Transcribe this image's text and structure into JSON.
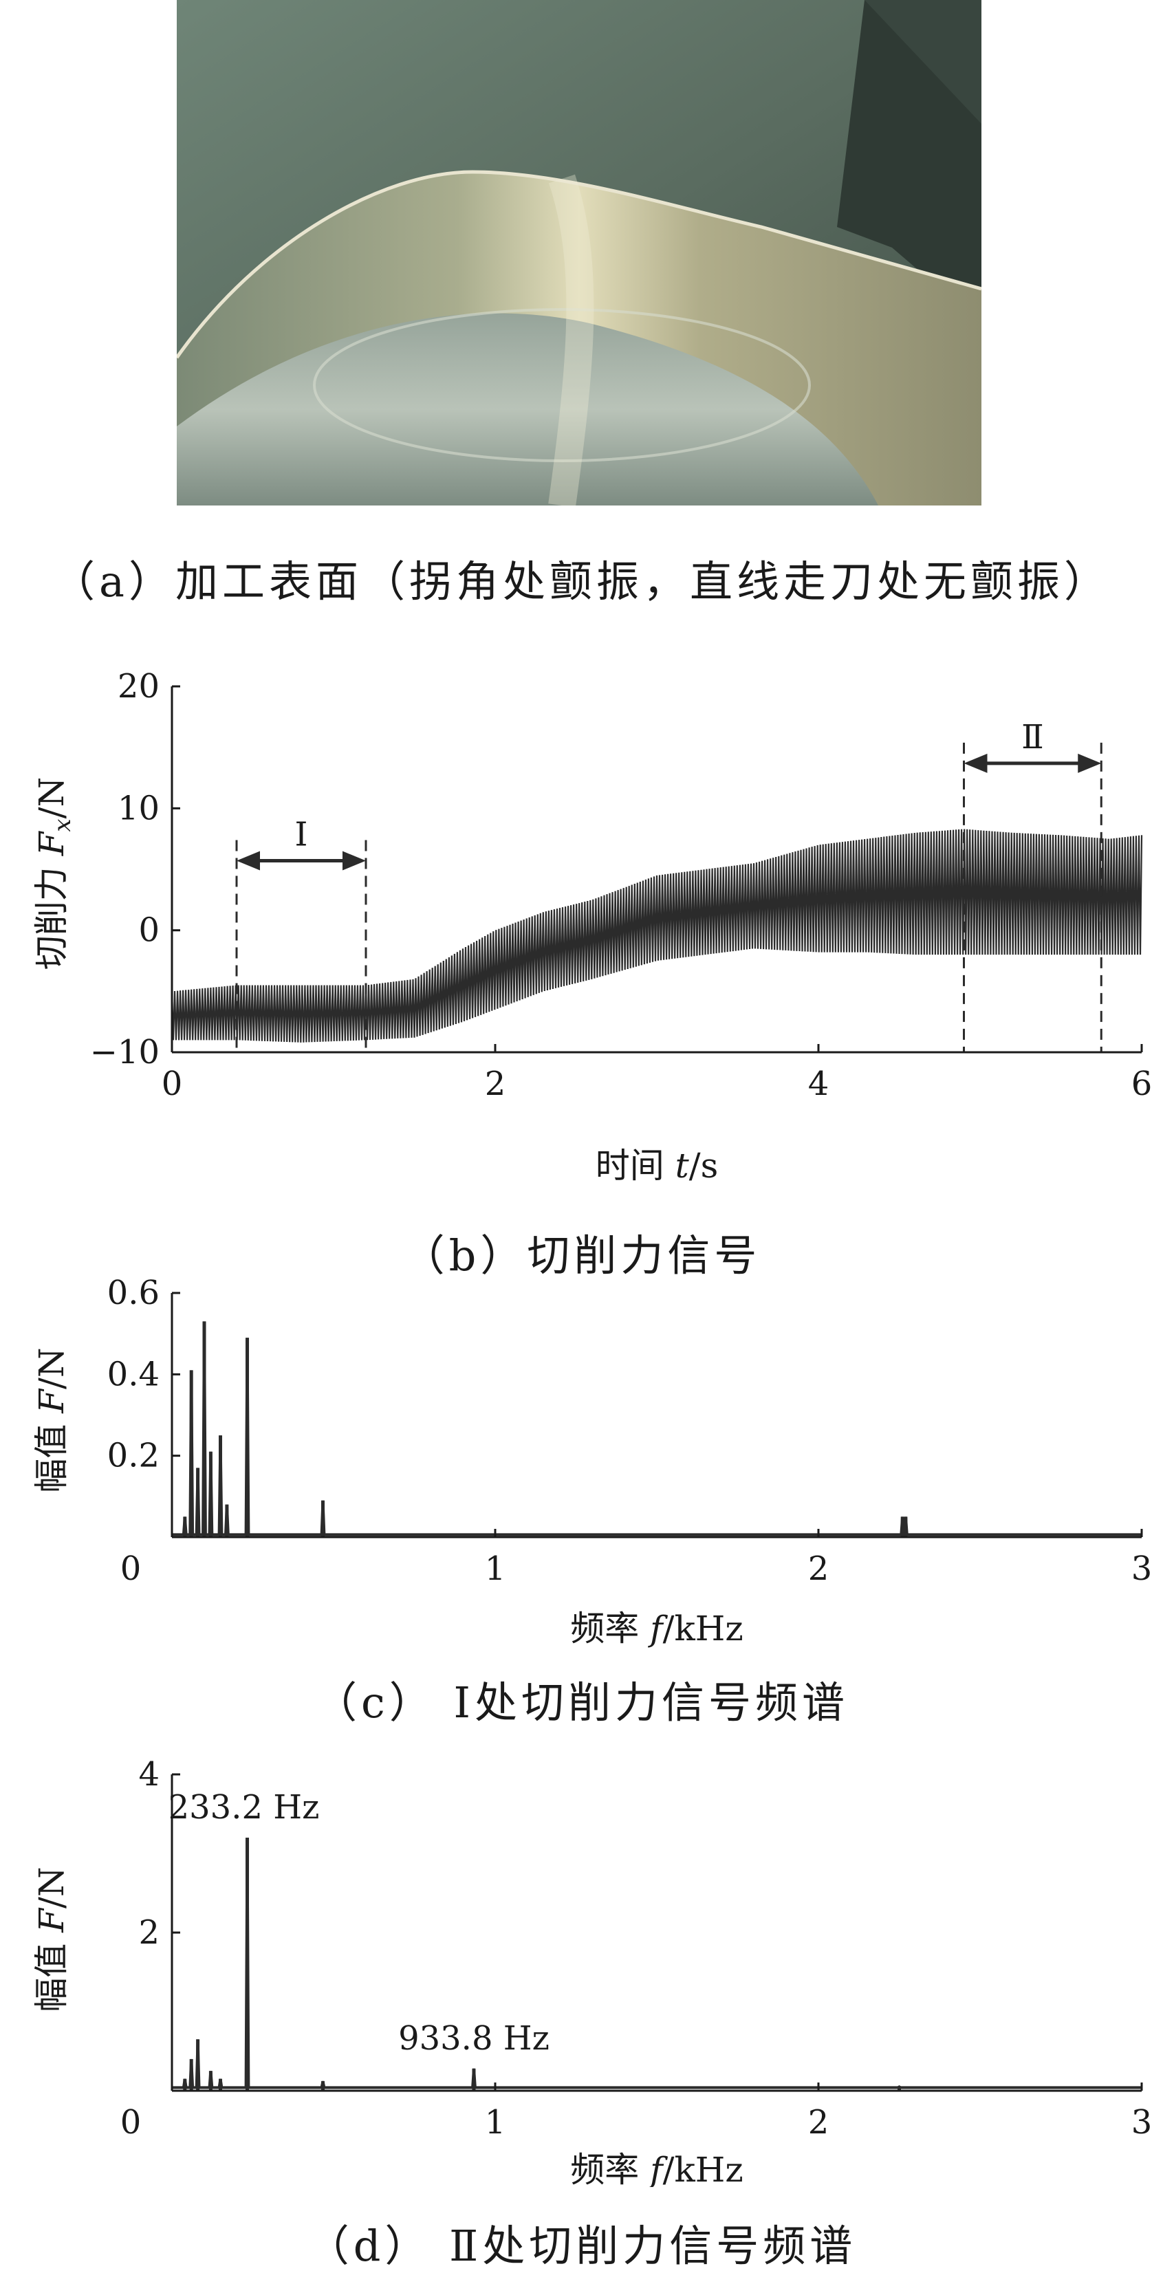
{
  "captions": {
    "a": "（a）加工表面（拐角处颤振，直线走刀处无颤振）",
    "b": "（b）切削力信号",
    "c": "（c） Ⅰ处切削力信号频谱",
    "d": "（d） Ⅱ处切削力信号频谱"
  },
  "chart_data": [
    {
      "id": "b",
      "type": "line",
      "title": "",
      "xlabel_prefix": "时间 ",
      "xlabel_var": "t",
      "xlabel_unit": "/s",
      "ylabel_prefix": "切削力 ",
      "ylabel_var": "F",
      "ylabel_sub": "x",
      "ylabel_unit": "/N",
      "xlim": [
        0,
        6
      ],
      "ylim": [
        -10,
        20
      ],
      "xticks": [
        "0",
        "2",
        "4",
        "6"
      ],
      "yticks": [
        "20",
        "10",
        "0",
        "−10"
      ],
      "series": [
        {
          "x": [
            0,
            0.4,
            0.8,
            1.2,
            1.5,
            1.8,
            2.0,
            2.3,
            2.6,
            3.0,
            3.3,
            3.6,
            4.0,
            4.3,
            4.6,
            4.9,
            5.2,
            5.5,
            5.8,
            6.0
          ],
          "ymin": [
            -9,
            -9,
            -9.2,
            -9,
            -8.8,
            -7.5,
            -6.5,
            -5,
            -4,
            -2.5,
            -2,
            -1.5,
            -1.8,
            -1.8,
            -2,
            -2,
            -2,
            -2,
            -2,
            -2
          ],
          "ymax": [
            -5,
            -4.5,
            -4.5,
            -4.5,
            -4,
            -1.5,
            0,
            1.5,
            2.5,
            4.5,
            5,
            5.5,
            7,
            7.5,
            8,
            8.3,
            8,
            7.8,
            7.5,
            7.8
          ]
        }
      ],
      "regions": [
        {
          "label": "Ⅰ",
          "x": [
            0.4,
            1.2
          ]
        },
        {
          "label": "Ⅱ",
          "x": [
            4.9,
            5.75
          ]
        }
      ]
    },
    {
      "id": "c",
      "type": "line",
      "title": "",
      "xlabel_prefix": "频率 ",
      "xlabel_var": "f",
      "xlabel_unit": "/kHz",
      "ylabel_prefix": "幅值 ",
      "ylabel_var": "F",
      "ylabel_unit": "/N",
      "xlim": [
        0,
        3
      ],
      "ylim": [
        0,
        0.6
      ],
      "xticks": [
        "0",
        "1",
        "2",
        "3"
      ],
      "yticks": [
        "0.6",
        "0.4",
        "0.2"
      ],
      "peaks": [
        {
          "f": 0.04,
          "a": 0.05
        },
        {
          "f": 0.06,
          "a": 0.41
        },
        {
          "f": 0.08,
          "a": 0.17
        },
        {
          "f": 0.1,
          "a": 0.53
        },
        {
          "f": 0.12,
          "a": 0.21
        },
        {
          "f": 0.15,
          "a": 0.25
        },
        {
          "f": 0.17,
          "a": 0.08
        },
        {
          "f": 0.233,
          "a": 0.49
        },
        {
          "f": 0.467,
          "a": 0.09
        },
        {
          "f": 2.26,
          "a": 0.05
        },
        {
          "f": 2.27,
          "a": 0.05
        }
      ]
    },
    {
      "id": "d",
      "type": "line",
      "title": "",
      "xlabel_prefix": "频率 ",
      "xlabel_var": "f",
      "xlabel_unit": "/kHz",
      "ylabel_prefix": "幅值 ",
      "ylabel_var": "F",
      "ylabel_unit": "/N",
      "xlim": [
        0,
        3
      ],
      "ylim": [
        0,
        4
      ],
      "xticks": [
        "0",
        "1",
        "2",
        "3"
      ],
      "yticks": [
        "4",
        "2"
      ],
      "peaks": [
        {
          "f": 0.04,
          "a": 0.15
        },
        {
          "f": 0.06,
          "a": 0.4
        },
        {
          "f": 0.08,
          "a": 0.65
        },
        {
          "f": 0.12,
          "a": 0.25
        },
        {
          "f": 0.15,
          "a": 0.15
        },
        {
          "f": 0.233,
          "a": 3.2
        },
        {
          "f": 0.467,
          "a": 0.12
        },
        {
          "f": 0.934,
          "a": 0.28
        },
        {
          "f": 2.25,
          "a": 0.05
        }
      ],
      "annotations": [
        {
          "text": "233.2 Hz",
          "f": 0.233,
          "a": 3.2
        },
        {
          "text": "933.8 Hz",
          "f": 0.934,
          "a": 0.28
        }
      ]
    }
  ]
}
